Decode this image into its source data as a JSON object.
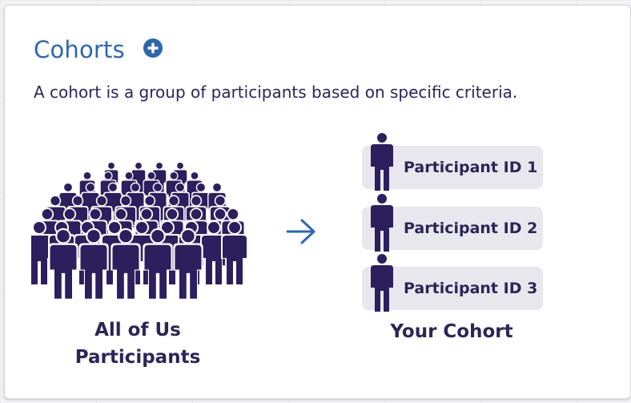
{
  "header": {
    "title": "Cohorts",
    "add_icon": "plus-circle-icon"
  },
  "description": "A cohort is a group of participants based on specific criteria.",
  "diagram": {
    "crowd_label_line1": "All of Us",
    "crowd_label_line2": "Participants",
    "arrow_icon": "arrow-right-icon",
    "participants": [
      {
        "label": "Participant ID 1"
      },
      {
        "label": "Participant ID 2"
      },
      {
        "label": "Participant ID 3"
      }
    ],
    "cohort_label": "Your Cohort"
  },
  "colors": {
    "title": "#2e67ad",
    "text": "#2b2557",
    "figure": "#2b1f5e",
    "pill": "#e8e7ee",
    "accent": "#2e67ad"
  }
}
